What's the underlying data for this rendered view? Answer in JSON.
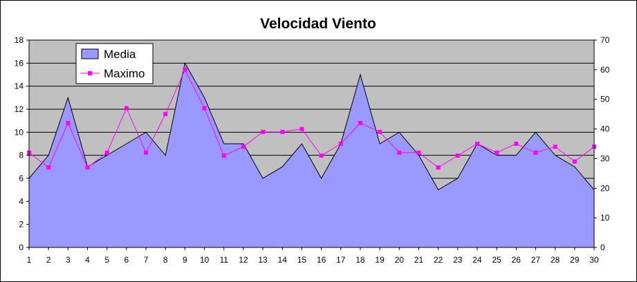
{
  "chart_data": {
    "type": "area",
    "title": "Velocidad Viento",
    "x": [
      1,
      2,
      3,
      4,
      5,
      6,
      7,
      8,
      9,
      10,
      11,
      12,
      13,
      14,
      15,
      16,
      17,
      18,
      19,
      20,
      21,
      22,
      23,
      24,
      25,
      26,
      27,
      28,
      29,
      30
    ],
    "y_left_range": [
      0,
      18
    ],
    "y_left_ticks": [
      0,
      2,
      4,
      6,
      8,
      10,
      12,
      14,
      16,
      18
    ],
    "y_right_range": [
      0,
      70
    ],
    "y_right_ticks": [
      0,
      10,
      20,
      30,
      40,
      50,
      60,
      70
    ],
    "grid": true,
    "legend_position": "top-left",
    "series": [
      {
        "name": "Media",
        "kind": "area",
        "axis": "left",
        "color": "#9999ff",
        "values": [
          6,
          8,
          13,
          7,
          8,
          9,
          10,
          8,
          16,
          13,
          9,
          9,
          6,
          7,
          9,
          6,
          9,
          15,
          9,
          10,
          8,
          5,
          6,
          9,
          8,
          8,
          10,
          8,
          7,
          5
        ]
      },
      {
        "name": "Maximo",
        "kind": "line",
        "axis": "right",
        "color": "#ff00ff",
        "values": [
          32,
          27,
          42,
          27,
          32,
          47,
          32,
          45,
          60,
          47,
          31,
          34,
          39,
          39,
          40,
          31,
          35,
          42,
          39,
          32,
          32,
          27,
          31,
          35,
          32,
          35,
          32,
          34,
          29,
          34
        ]
      }
    ]
  },
  "colors": {
    "plot_background": "#c0c0c0",
    "gridline": "#000000",
    "area_fill": "#9999ff",
    "line_color": "#ff00ff"
  }
}
